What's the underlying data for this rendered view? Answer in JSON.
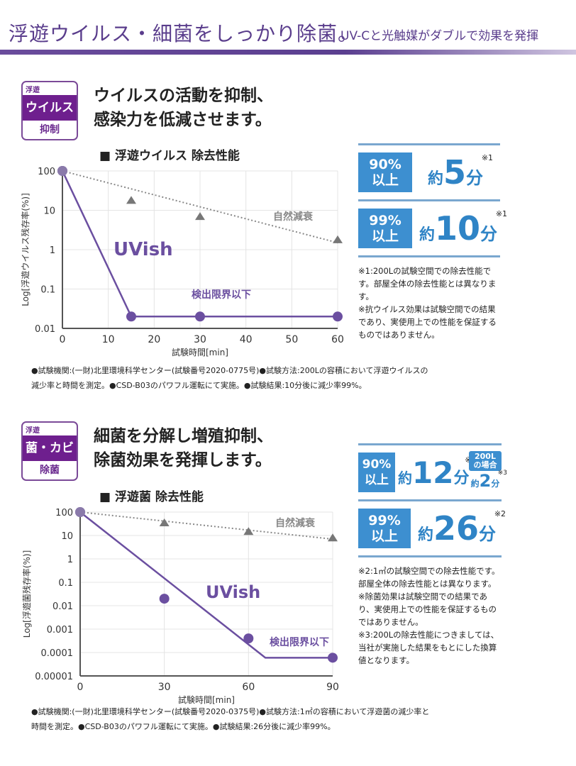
{
  "header": {
    "title": "浮遊ウイルス・細菌をしっかり除菌。",
    "subtitle": "UV-Cと光触媒がダブルで効果を発揮"
  },
  "colors": {
    "accent": "#6e1f8e",
    "uvish": "#6b4fa0",
    "natural": "#888888",
    "stat_blue": "#3d8fd0",
    "header_purple": "#5a3d8c"
  },
  "section1": {
    "badge": {
      "top": "浮遊",
      "main": "ウイルス",
      "bottom": "抑制"
    },
    "headline": [
      "ウイルスの活動を抑制、",
      "感染力を低減させます。"
    ],
    "chart_title": "■ 浮遊ウイルス 除去性能",
    "stats": [
      {
        "box": [
          "90%",
          "以上"
        ],
        "prefix": "約",
        "value": "5",
        "unit": "分",
        "note": "※1"
      },
      {
        "box": [
          "99%",
          "以上"
        ],
        "prefix": "約",
        "value": "10",
        "unit": "分",
        "note": "※1"
      }
    ],
    "notes": [
      "※1:200Lの試験空間での除去性能です。部屋全体の除去性能とは異なります。",
      "※抗ウイルス効果は試験空間での結果であり、実使用上での性能を保証するものではありません。"
    ],
    "footer": [
      "●試験機関:(一財)北里環境科学センター(試験番号2020-0775号)●試験方法:200Lの容積において浮遊ウイルスの",
      "減少率と時間を測定。●CSD-B03のパワフル運転にて実施。●試験結果:10分後に減少率99%。"
    ]
  },
  "section2": {
    "badge": {
      "top": "浮遊",
      "main": "菌・カビ",
      "bottom": "除菌"
    },
    "headline": [
      "細菌を分解し増殖抑制、",
      "除菌効果を発揮します。"
    ],
    "chart_title": "■ 浮遊菌 除去性能",
    "stats": [
      {
        "box": [
          "90%",
          "以上"
        ],
        "prefix": "約",
        "value": "12",
        "unit": "分",
        "note": "※2",
        "extra": {
          "badge": [
            "200L",
            "の場合"
          ],
          "prefix": "約",
          "value": "2",
          "unit": "分",
          "note": "※3"
        }
      },
      {
        "box": [
          "99%",
          "以上"
        ],
        "prefix": "約",
        "value": "26",
        "unit": "分",
        "note": "※2"
      }
    ],
    "notes": [
      "※2:1㎡の試験空間での除去性能です。部屋全体の除去性能とは異なります。",
      "※除菌効果は試験空間での結果であり、実使用上での性能を保証するものではありません。",
      "※3:200Lの除去性能につきましては、当社が実施した結果をもとにした換算値となります。"
    ],
    "footer": [
      "●試験機関:(一財)北里環境科学センター(試験番号2020-0375号)●試験方法:1㎡の容積において浮遊菌の減少率と",
      "時間を測定。●CSD-B03のパワフル運転にて実施。●試験結果:26分後に減少率99%。"
    ]
  },
  "chart_data": [
    {
      "type": "line",
      "title": "■ 浮遊ウイルス 除去性能",
      "xlabel": "試験時間[min]",
      "ylabel": "Log[浮遊ウイルス残存率(%)]",
      "yscale": "log",
      "xlim": [
        0,
        60
      ],
      "ylim": [
        0.01,
        100
      ],
      "xticks": [
        "0",
        "10",
        "20",
        "30",
        "40",
        "50",
        "60"
      ],
      "yticks": [
        "100",
        "10",
        "1",
        "0.1",
        "0.01"
      ],
      "grid": true,
      "series": [
        {
          "name": "UVish",
          "x": [
            0,
            15,
            30,
            60
          ],
          "y": [
            100,
            0.02,
            0.02,
            0.02
          ],
          "line": [
            [
              0,
              100
            ],
            [
              15,
              0.02
            ],
            [
              60,
              0.02
            ]
          ],
          "marker": "circle",
          "style": "solid"
        },
        {
          "name": "自然減衰",
          "x": [
            15,
            30,
            60
          ],
          "y": [
            18,
            7,
            1.8
          ],
          "line": [
            [
              0,
              100
            ],
            [
              60,
              1.5
            ]
          ],
          "marker": "triangle",
          "style": "dotted"
        }
      ],
      "annotations": [
        "検出限界以下"
      ]
    },
    {
      "type": "line",
      "title": "■ 浮遊菌 除去性能",
      "xlabel": "試験時間[min]",
      "ylabel": "Log[浮遊菌残存率(%)]",
      "yscale": "log",
      "xlim": [
        0,
        90
      ],
      "ylim": [
        1e-05,
        100
      ],
      "xticks": [
        "0",
        "30",
        "60",
        "90"
      ],
      "yticks": [
        "100",
        "10",
        "1",
        "0.1",
        "0.01",
        "0.001",
        "0.0001",
        "0.00001"
      ],
      "grid": true,
      "series": [
        {
          "name": "UVish",
          "x": [
            0,
            30,
            60,
            90
          ],
          "y": [
            100,
            0.02,
            0.0004,
            6e-05
          ],
          "line": [
            [
              0,
              100
            ],
            [
              66,
              6e-05
            ],
            [
              90,
              6e-05
            ]
          ],
          "marker": "circle",
          "style": "solid"
        },
        {
          "name": "自然減衰",
          "x": [
            30,
            60,
            90
          ],
          "y": [
            35,
            15,
            8
          ],
          "line": [
            [
              0,
              100
            ],
            [
              90,
              7
            ]
          ],
          "marker": "triangle",
          "style": "dotted"
        }
      ],
      "annotations": [
        "検出限界以下"
      ]
    }
  ]
}
